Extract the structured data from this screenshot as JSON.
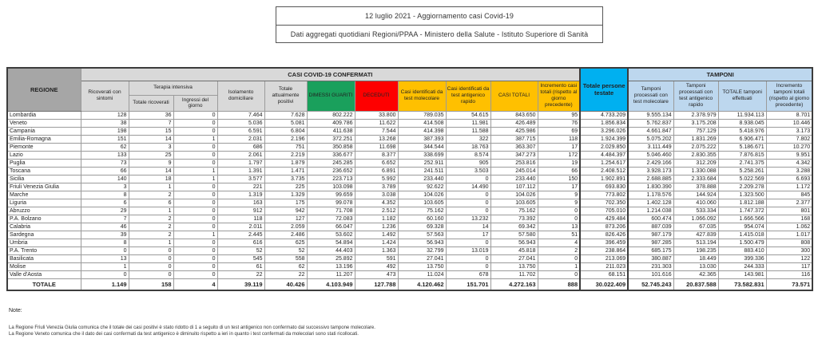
{
  "title": {
    "line1": "12 luglio 2021 - Aggiornamento casi Covid-19",
    "line2": "Dati aggregati quotidiani Regioni/PPAA - Ministero della Salute - Istituto Superiore di Sanità"
  },
  "colors": {
    "green": "#1aa05c",
    "red": "#fe0000",
    "yellow": "#ffc000",
    "cyan": "#00b0f0",
    "lightblue": "#bdd7ee",
    "headerGray": "#a6a6a6",
    "subheaderGray": "#d9d9d9",
    "totalGray": "#bfbfbf"
  },
  "table": {
    "group_headers": {
      "regione": "REGIONE",
      "casi_confermati": "CASI COVID-19 CONFERMATI",
      "terapia_intensiva": "Terapia intensiva",
      "persone_testate": "Totale persone testate",
      "tamponi": "TAMPONI"
    },
    "columns": [
      "Ricoverati con sintomi",
      "Totale ricoverati",
      "Ingressi del giorno",
      "Isolamento domiciliare",
      "Totale attualmente positivi",
      "DIMESSI GUARITI",
      "DECEDUTI",
      "Casi identificati da test molecolare",
      "Casi identificati da test antigenico rapido",
      "CASI TOTALI",
      "Incremento casi totali (rispetto al giorno precedente)",
      "Tamponi processati con test molecolare",
      "Tamponi processati con test antigenico rapido",
      "TOTALE tamponi effettuati",
      "Incremento tamponi totali (rispetto al giorno precedente)"
    ],
    "rows": [
      {
        "region": "Lombardia",
        "values": [
          "128",
          "36",
          "0",
          "7.464",
          "7.628",
          "802.222",
          "33.800",
          "789.035",
          "54.615",
          "843.650",
          "95",
          "4.733.209",
          "9.555.134",
          "2.378.979",
          "11.934.113",
          "8.701"
        ]
      },
      {
        "region": "Veneto",
        "values": [
          "38",
          "7",
          "0",
          "5.036",
          "5.081",
          "409.786",
          "11.622",
          "414.508",
          "11.981",
          "426.489",
          "76",
          "1.856.834",
          "5.762.837",
          "3.175.208",
          "8.938.045",
          "10.446"
        ]
      },
      {
        "region": "Campania",
        "values": [
          "198",
          "15",
          "0",
          "6.591",
          "6.804",
          "411.638",
          "7.544",
          "414.398",
          "11.588",
          "425.986",
          "69",
          "3.296.026",
          "4.661.847",
          "757.129",
          "5.418.976",
          "3.173"
        ]
      },
      {
        "region": "Emilia-Romagna",
        "values": [
          "151",
          "14",
          "1",
          "2.031",
          "2.196",
          "372.251",
          "13.268",
          "387.393",
          "322",
          "387.715",
          "118",
          "1.924.399",
          "5.075.202",
          "1.831.269",
          "6.906.471",
          "7.802"
        ]
      },
      {
        "region": "Piemonte",
        "values": [
          "62",
          "3",
          "0",
          "686",
          "751",
          "350.858",
          "11.698",
          "344.544",
          "18.763",
          "363.307",
          "17",
          "2.029.850",
          "3.111.449",
          "2.075.222",
          "5.186.671",
          "10.270"
        ]
      },
      {
        "region": "Lazio",
        "values": [
          "133",
          "25",
          "0",
          "2.061",
          "2.219",
          "336.677",
          "8.377",
          "338.699",
          "8.574",
          "347.273",
          "172",
          "4.484.397",
          "5.046.460",
          "2.830.355",
          "7.876.815",
          "9.951"
        ]
      },
      {
        "region": "Puglia",
        "values": [
          "73",
          "9",
          "0",
          "1.797",
          "1.879",
          "245.285",
          "6.652",
          "252.911",
          "905",
          "253.816",
          "19",
          "1.254.617",
          "2.429.166",
          "312.209",
          "2.741.375",
          "4.342"
        ]
      },
      {
        "region": "Toscana",
        "values": [
          "66",
          "14",
          "1",
          "1.391",
          "1.471",
          "236.652",
          "6.891",
          "241.511",
          "3.503",
          "245.014",
          "66",
          "2.408.512",
          "3.928.173",
          "1.330.088",
          "5.258.261",
          "3.288"
        ]
      },
      {
        "region": "Sicilia",
        "values": [
          "140",
          "18",
          "1",
          "3.577",
          "3.735",
          "223.713",
          "5.992",
          "233.440",
          "0",
          "233.440",
          "150",
          "1.902.891",
          "2.688.885",
          "2.333.684",
          "5.022.569",
          "6.693"
        ]
      },
      {
        "region": "Friuli Venezia Giulia",
        "values": [
          "3",
          "1",
          "0",
          "221",
          "225",
          "103.098",
          "3.789",
          "92.622",
          "14.490",
          "107.112",
          "17",
          "693.830",
          "1.830.390",
          "378.888",
          "2.209.278",
          "1.172"
        ]
      },
      {
        "region": "Marche",
        "values": [
          "8",
          "2",
          "0",
          "1.319",
          "1.329",
          "99.659",
          "3.038",
          "104.026",
          "0",
          "104.026",
          "9",
          "773.802",
          "1.178.576",
          "144.924",
          "1.323.500",
          "845"
        ]
      },
      {
        "region": "Liguria",
        "values": [
          "6",
          "6",
          "0",
          "163",
          "175",
          "99.078",
          "4.352",
          "103.605",
          "0",
          "103.605",
          "9",
          "702.350",
          "1.402.128",
          "410.060",
          "1.812.188",
          "2.377"
        ]
      },
      {
        "region": "Abruzzo",
        "values": [
          "29",
          "1",
          "0",
          "912",
          "942",
          "71.708",
          "2.512",
          "75.162",
          "0",
          "75.162",
          "0",
          "705.010",
          "1.214.038",
          "533.334",
          "1.747.372",
          "801"
        ]
      },
      {
        "region": "P.A. Bolzano",
        "values": [
          "7",
          "2",
          "0",
          "118",
          "127",
          "72.083",
          "1.182",
          "60.160",
          "13.232",
          "73.392",
          "0",
          "429.484",
          "600.474",
          "1.066.092",
          "1.666.566",
          "168"
        ]
      },
      {
        "region": "Calabria",
        "values": [
          "46",
          "2",
          "0",
          "2.011",
          "2.059",
          "66.047",
          "1.236",
          "69.328",
          "14",
          "69.342",
          "13",
          "873.206",
          "887.039",
          "67.035",
          "954.074",
          "1.062"
        ]
      },
      {
        "region": "Sardegna",
        "values": [
          "39",
          "2",
          "1",
          "2.445",
          "2.486",
          "53.602",
          "1.492",
          "57.563",
          "17",
          "57.580",
          "51",
          "826.426",
          "987.179",
          "427.839",
          "1.415.018",
          "1.017"
        ]
      },
      {
        "region": "Umbria",
        "values": [
          "8",
          "1",
          "0",
          "616",
          "625",
          "54.894",
          "1.424",
          "56.943",
          "0",
          "56.943",
          "4",
          "396.459",
          "987.285",
          "513.194",
          "1.500.479",
          "808"
        ]
      },
      {
        "region": "P.A. Trento",
        "values": [
          "0",
          "0",
          "0",
          "52",
          "52",
          "44.403",
          "1.363",
          "32.799",
          "13.019",
          "45.818",
          "2",
          "238.864",
          "685.175",
          "198.235",
          "883.410",
          "300"
        ]
      },
      {
        "region": "Basilicata",
        "values": [
          "13",
          "0",
          "0",
          "545",
          "558",
          "25.892",
          "591",
          "27.041",
          "0",
          "27.041",
          "0",
          "213.069",
          "380.887",
          "18.449",
          "399.336",
          "122"
        ]
      },
      {
        "region": "Molise",
        "values": [
          "1",
          "0",
          "0",
          "61",
          "62",
          "13.196",
          "492",
          "13.750",
          "0",
          "13.750",
          "1",
          "211.023",
          "231.303",
          "13.030",
          "244.333",
          "117"
        ]
      },
      {
        "region": "Valle d'Aosta",
        "values": [
          "0",
          "0",
          "0",
          "22",
          "22",
          "11.207",
          "473",
          "11.024",
          "678",
          "11.702",
          "0",
          "68.151",
          "101.616",
          "42.365",
          "143.981",
          "116"
        ]
      }
    ],
    "total_row": {
      "region": "TOTALE",
      "values": [
        "1.149",
        "158",
        "4",
        "39.119",
        "40.426",
        "4.103.949",
        "127.788",
        "4.120.462",
        "151.701",
        "4.272.163",
        "888",
        "30.022.409",
        "52.745.243",
        "20.837.588",
        "73.582.831",
        "73.571"
      ]
    }
  },
  "notes": {
    "label": "Note:",
    "lines": [
      "La Regione Friuli Venezia Giulia comunica che il totale dei casi positivi è stato ridotto di 1 a seguito di un test antigenico non confermato dal successivo tampone molecolare.",
      "La Regione Veneto comunica che il dato dei casi confermati da test antigenico è diminuito rispetto a ieri in quanto i test confermati da molecolari sono stati ricollocati."
    ]
  }
}
